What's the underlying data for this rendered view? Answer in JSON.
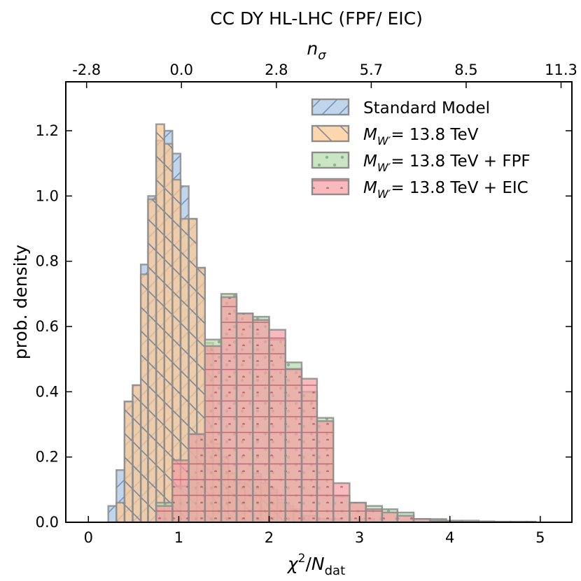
{
  "chart_data": {
    "type": "histogram",
    "title": "CC DY HL-LHC (FPF/ EIC)",
    "xlabel": "χ²/N_dat",
    "ylabel": "prob. density",
    "top_axis_label": "n_σ",
    "xlim": [
      -0.25,
      5.35
    ],
    "ylim": [
      0,
      1.35
    ],
    "x_ticks": [
      "0",
      "1",
      "2",
      "3",
      "4",
      "5"
    ],
    "y_ticks": [
      "0.0",
      "0.2",
      "0.4",
      "0.6",
      "0.8",
      "1.0",
      "1.2"
    ],
    "top_ticks": [
      {
        "x": -0.02,
        "label": "-2.8"
      },
      {
        "x": 1.03,
        "label": "0.0"
      },
      {
        "x": 2.08,
        "label": "2.8"
      },
      {
        "x": 3.13,
        "label": "5.7"
      },
      {
        "x": 4.18,
        "label": "8.5"
      },
      {
        "x": 5.23,
        "label": "11.3"
      }
    ],
    "grid": false,
    "legend_position": "top-right",
    "series": [
      {
        "key": "sm",
        "legend_text": "Standard Model",
        "legend_math": "",
        "legend_suffix": "",
        "color": "#a9c6e4",
        "hatch": "slash",
        "hatch_color": "#5b7fa6",
        "bins": [
          0.22,
          0.31,
          0.4,
          0.49,
          0.58,
          0.66,
          0.75,
          0.84,
          0.93,
          1.02,
          1.11,
          1.2,
          1.29,
          1.38,
          1.47,
          1.55,
          1.64,
          1.73,
          1.82,
          1.91,
          2.0,
          2.09,
          2.18,
          2.27,
          2.36,
          2.44,
          2.53,
          2.62,
          2.71,
          2.8,
          2.89,
          2.98,
          3.07,
          3.16,
          3.25,
          3.33
        ],
        "values": [
          0.05,
          0.16,
          0.37,
          0.42,
          0.79,
          1.0,
          1.17,
          1.2,
          1.13,
          1.03,
          0.93,
          0.78,
          0.53,
          0.23,
          0.2,
          0.15,
          0.13,
          0.13,
          0.15,
          0.12,
          0.1,
          0.07,
          0.05,
          0.04,
          0.02,
          0.02,
          0.01,
          0.01,
          0.01,
          0.0,
          0.0,
          0.01,
          0.01,
          0.0,
          0.0
        ]
      },
      {
        "key": "w",
        "legend_text": "",
        "legend_math": "M",
        "legend_sub": "W′",
        "legend_suffix": "= 13.8 TeV",
        "color": "#ffc78f",
        "hatch": "backslash",
        "hatch_color": "#4a6fa0",
        "bins": [
          0.22,
          0.31,
          0.4,
          0.49,
          0.58,
          0.66,
          0.75,
          0.84,
          0.93,
          1.02,
          1.11,
          1.2,
          1.29,
          1.38,
          1.47,
          1.55,
          1.64,
          1.73,
          1.82,
          1.91,
          2.0,
          2.09,
          2.18,
          2.27,
          2.36,
          2.44,
          2.53,
          2.62,
          2.71,
          2.8,
          2.89,
          2.98,
          3.07,
          3.16,
          3.25,
          3.33
        ],
        "values": [
          0.0,
          0.06,
          0.37,
          0.42,
          0.76,
          0.99,
          1.22,
          1.16,
          1.05,
          0.93,
          0.93,
          0.78,
          0.55,
          0.24,
          0.2,
          0.15,
          0.12,
          0.13,
          0.14,
          0.12,
          0.09,
          0.06,
          0.04,
          0.04,
          0.02,
          0.02,
          0.01,
          0.01,
          0.01,
          0.0,
          0.0,
          0.01,
          0.01,
          0.0,
          0.0
        ]
      },
      {
        "key": "fpf",
        "legend_text": "",
        "legend_math": "M",
        "legend_sub": "W′",
        "legend_suffix": "= 13.8 TeV + FPF",
        "color": "#b5dba9",
        "hatch": "dots",
        "hatch_color": "#7a9e7a",
        "bins": [
          0.75,
          0.93,
          1.11,
          1.29,
          1.47,
          1.64,
          1.82,
          2.0,
          2.18,
          2.36,
          2.53,
          2.71,
          2.89,
          3.07,
          3.25,
          3.42,
          3.6,
          3.78,
          3.96,
          4.14,
          4.32,
          4.49,
          4.67,
          4.85,
          4.95
        ],
        "values": [
          0.06,
          0.11,
          0.27,
          0.56,
          0.7,
          0.64,
          0.63,
          0.56,
          0.49,
          0.4,
          0.32,
          0.08,
          0.06,
          0.05,
          0.04,
          0.03,
          0.01,
          0.01,
          0.005,
          0.005,
          0.003,
          0.002,
          0.002,
          0.002
        ]
      },
      {
        "key": "eic",
        "legend_text": "",
        "legend_math": "M",
        "legend_sub": "W′",
        "legend_suffix": "= 13.8 TeV + EIC",
        "color": "#f5a0a4",
        "hatch": "horizontal",
        "hatch_color": "#b05060",
        "bins": [
          0.75,
          0.93,
          1.11,
          1.29,
          1.47,
          1.64,
          1.82,
          2.0,
          2.18,
          2.36,
          2.53,
          2.71,
          2.89,
          3.07,
          3.25,
          3.42,
          3.6,
          3.78,
          3.96,
          4.14
        ],
        "values": [
          0.05,
          0.19,
          0.27,
          0.54,
          0.69,
          0.64,
          0.62,
          0.59,
          0.47,
          0.44,
          0.31,
          0.12,
          0.06,
          0.04,
          0.03,
          0.02,
          0.01,
          0.005,
          0.003
        ]
      }
    ]
  }
}
